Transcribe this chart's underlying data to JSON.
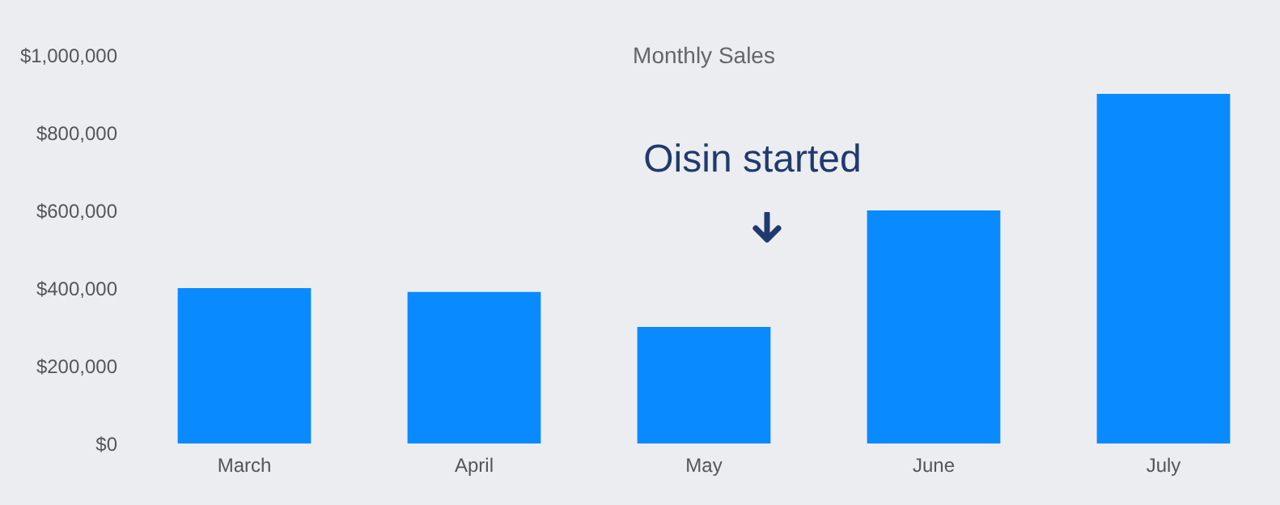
{
  "chart_data": {
    "type": "bar",
    "title": "Monthly Sales",
    "categories": [
      "March",
      "April",
      "May",
      "June",
      "July"
    ],
    "values": [
      400000,
      390000,
      300000,
      600000,
      900000
    ],
    "color": "#0a8aff",
    "ylim": [
      0,
      1000000
    ],
    "yticks": [
      {
        "value": 0,
        "label": "$0"
      },
      {
        "value": 200000,
        "label": "$200,000"
      },
      {
        "value": 400000,
        "label": "$400,000"
      },
      {
        "value": 600000,
        "label": "$600,000"
      },
      {
        "value": 800000,
        "label": "$800,000"
      },
      {
        "value": 1000000,
        "label": "$1,000,000"
      }
    ],
    "annotations": [
      "Oisin started"
    ],
    "grid": false
  }
}
